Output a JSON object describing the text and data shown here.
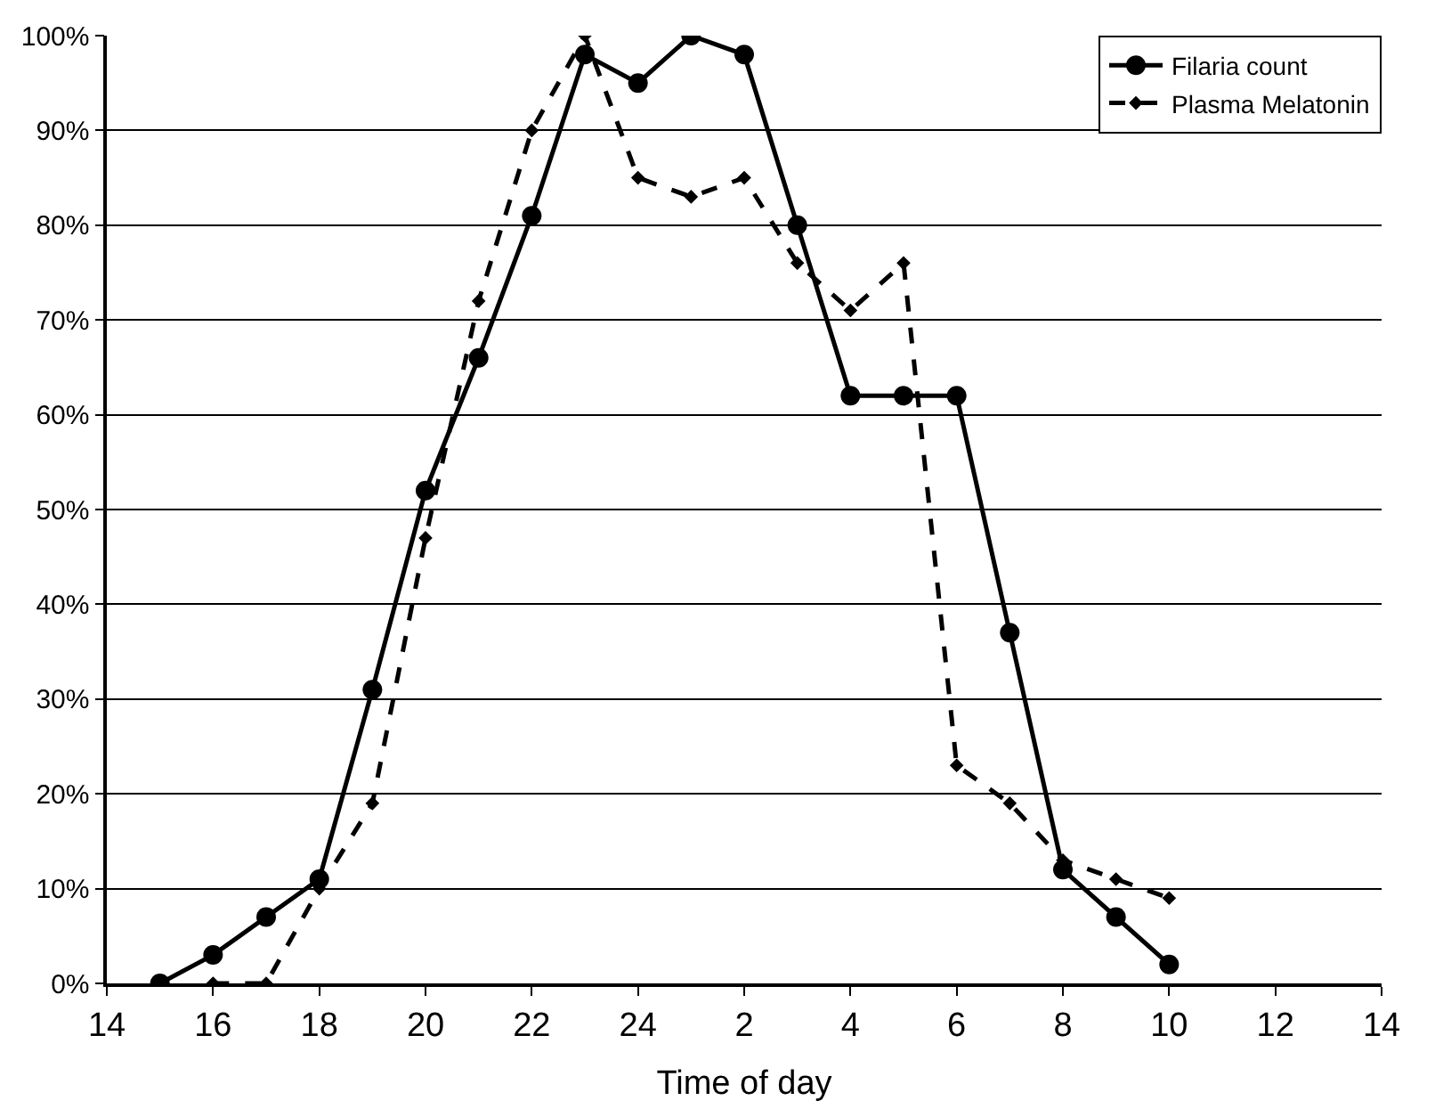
{
  "chart_data": {
    "type": "line",
    "xlabel": "Time of day",
    "categories": [
      "14",
      null,
      "16",
      null,
      "18",
      null,
      "20",
      null,
      "22",
      null,
      "24",
      null,
      "2",
      null,
      "4",
      null,
      "6",
      null,
      "8",
      null,
      "10",
      null,
      "12",
      null,
      "14"
    ],
    "ylim": [
      0,
      100
    ],
    "yticks": [
      {
        "value": 0,
        "label": "0%"
      },
      {
        "value": 10,
        "label": "10%"
      },
      {
        "value": 20,
        "label": "20%"
      },
      {
        "value": 30,
        "label": "30%"
      },
      {
        "value": 40,
        "label": "40%"
      },
      {
        "value": 50,
        "label": "50%"
      },
      {
        "value": 60,
        "label": "60%"
      },
      {
        "value": 70,
        "label": "70%"
      },
      {
        "value": 80,
        "label": "80%"
      },
      {
        "value": 90,
        "label": "90%"
      },
      {
        "value": 100,
        "label": "100%"
      }
    ],
    "grid": "y",
    "legend": "top right",
    "series": [
      {
        "name": "Filaria count",
        "color": "#000000",
        "marker": "circle",
        "line_style": "solid",
        "values": [
          null,
          0,
          3,
          7,
          11,
          31,
          52,
          66,
          81,
          98,
          95,
          100,
          98,
          80,
          62,
          62,
          62,
          37,
          12,
          7,
          2,
          null,
          null,
          null,
          null
        ]
      },
      {
        "name": "Plasma Melatonin",
        "color": "#000000",
        "marker": "diamond",
        "line_style": "dashed",
        "values": [
          null,
          null,
          0,
          0,
          10,
          19,
          47,
          72,
          90,
          100,
          85,
          83,
          85,
          76,
          71,
          76,
          23,
          19,
          13,
          11,
          9,
          null,
          null,
          null,
          null
        ]
      }
    ]
  }
}
